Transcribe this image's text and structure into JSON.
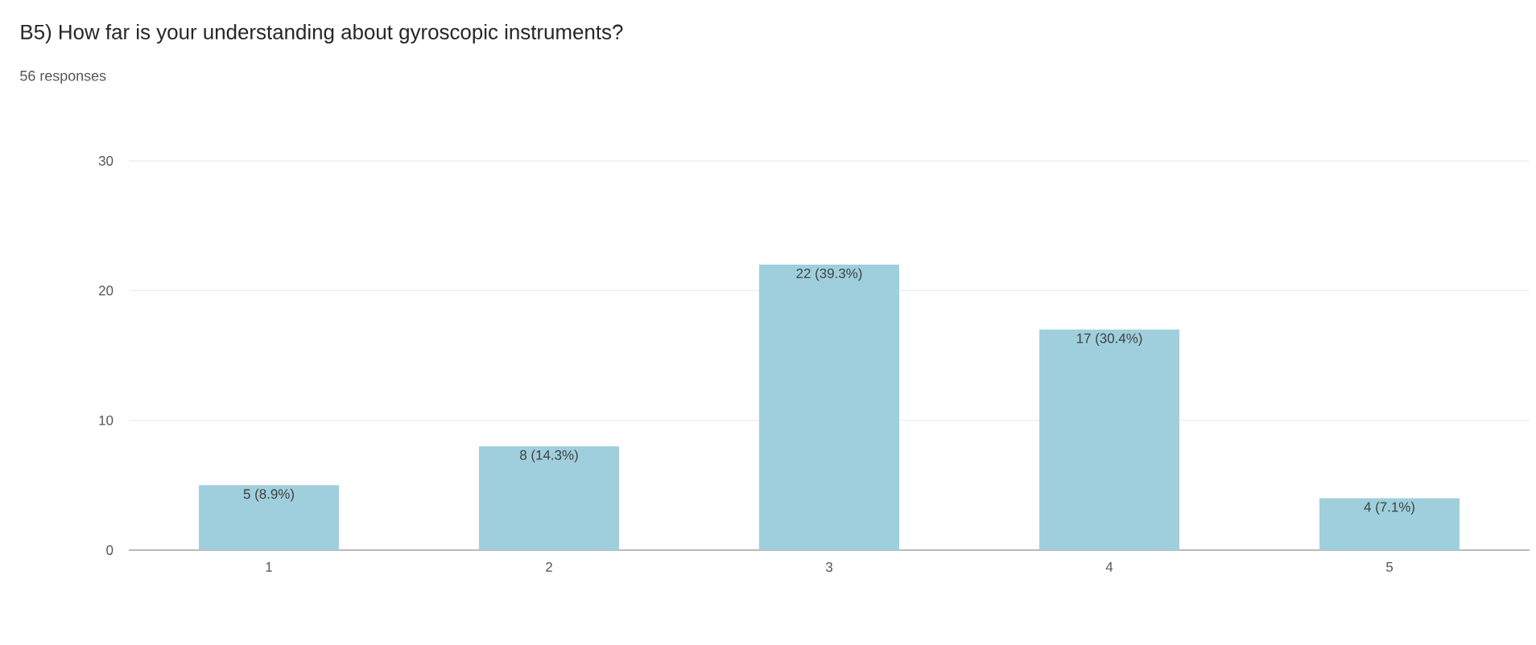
{
  "chart_data": {
    "type": "bar",
    "title": "B5)  How far is your understanding about gyroscopic instruments?",
    "subtitle": "56 responses",
    "categories": [
      "1",
      "2",
      "3",
      "4",
      "5"
    ],
    "values": [
      5,
      8,
      22,
      17,
      4
    ],
    "value_labels": [
      "5 (8.9%)",
      "8 (14.3%)",
      "22 (39.3%)",
      "17 (30.4%)",
      "4 (7.1%)"
    ],
    "color": "#9fcfdc",
    "ylim": [
      0,
      30
    ],
    "yticks": [
      0,
      10,
      20,
      30
    ],
    "grid": "y"
  }
}
